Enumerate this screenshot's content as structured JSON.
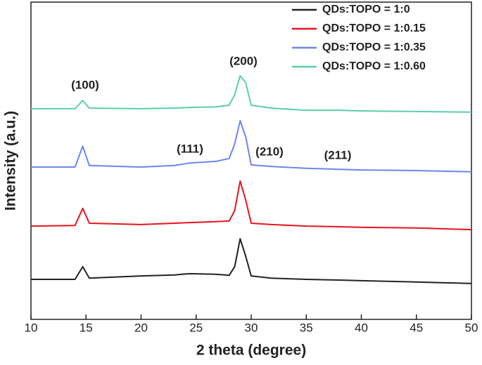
{
  "chart_data": {
    "type": "line",
    "x_label": "2 theta (degree)",
    "y_label": "Intensity (a.u.)",
    "x": [
      10,
      14,
      14.7,
      15.3,
      20,
      23,
      24.4,
      26.8,
      28,
      28.5,
      29,
      29.5,
      30,
      31.8,
      35,
      38,
      40,
      45,
      50
    ],
    "series": [
      {
        "name": "QDs:TOPO = 1:0",
        "color": "#222222",
        "values": [
          12.6,
          12.6,
          16.6,
          13.0,
          13.7,
          14.0,
          14.4,
          14.2,
          13.9,
          16.6,
          25.4,
          19.9,
          13.7,
          13.0,
          12.6,
          12.4,
          12.2,
          11.8,
          11.3
        ]
      },
      {
        "name": "QDs:TOPO = 1:0.15",
        "color": "#e8141a",
        "values": [
          29.4,
          29.6,
          35.0,
          30.3,
          29.9,
          30.3,
          30.5,
          30.8,
          31.0,
          34.3,
          43.6,
          37.6,
          30.3,
          29.9,
          29.4,
          29.2,
          29.0,
          28.8,
          28.3
        ]
      },
      {
        "name": "QDs:TOPO = 1:0.35",
        "color": "#6b86f0",
        "values": [
          48.0,
          48.0,
          54.6,
          48.5,
          48.0,
          48.5,
          49.3,
          49.8,
          50.7,
          55.3,
          62.6,
          57.5,
          48.7,
          48.2,
          47.6,
          47.3,
          47.1,
          46.9,
          46.5
        ]
      },
      {
        "name": "QDs:TOPO = 1:0.60",
        "color": "#5ccfa8",
        "values": [
          66.4,
          66.4,
          69.0,
          66.6,
          66.4,
          66.6,
          66.8,
          67.0,
          67.5,
          70.8,
          76.8,
          74.6,
          67.5,
          66.6,
          65.9,
          65.9,
          65.7,
          65.5,
          65.3
        ]
      }
    ],
    "annotations": [
      "(100)",
      "(200)",
      "(111)",
      "(210)",
      "(211)"
    ],
    "xlim": [
      10,
      50
    ],
    "xticks": [
      10,
      15,
      20,
      25,
      30,
      35,
      40,
      45,
      50
    ],
    "ylim": [
      0,
      100
    ],
    "legend": "upper right",
    "grid": false
  }
}
